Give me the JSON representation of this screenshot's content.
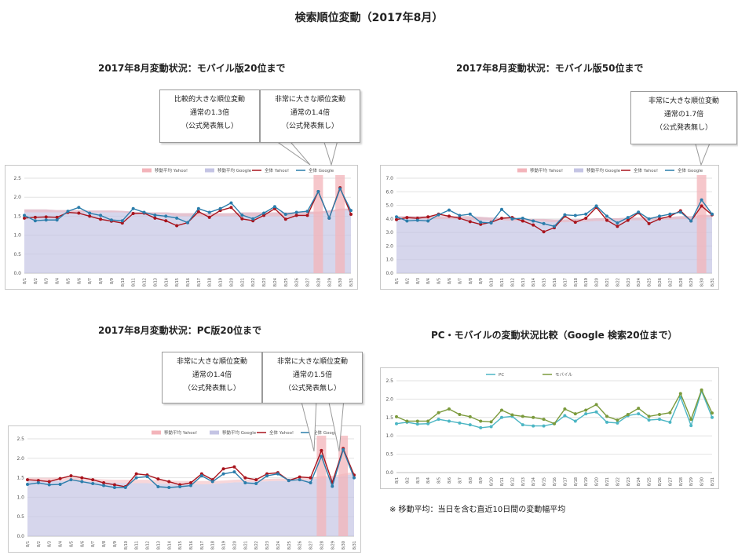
{
  "page": {
    "title": "検索順位変動（2017年8月）"
  },
  "footnote": "※ 移動平均：当日を含む直近10日間の変動幅平均",
  "colors": {
    "yahoo": "#a8141d",
    "google": "#2b7dab",
    "band": "#c4c4e4",
    "highlight": "#f3b4ba",
    "pc": "#4cb6c4",
    "mobile": "#7b9a3c"
  },
  "sections": [
    {
      "title": "2017年8月変動状況：モバイル版20位まで",
      "callouts": [
        {
          "lines": [
            "比較的大きな順位変動",
            "通常の1.3倍",
            "（公式発表無し）"
          ]
        },
        {
          "lines": [
            "非常に大きな順位変動",
            "通常の1.4倍",
            "（公式発表無し）"
          ]
        }
      ]
    },
    {
      "title": "2017年8月変動状況：モバイル版50位まで",
      "callouts": [
        {
          "lines": [
            "非常に大きな順位変動",
            "通常の1.7倍",
            "（公式発表無し）"
          ]
        }
      ]
    },
    {
      "title": "2017年8月変動状況：PC版20位まで",
      "callouts": [
        {
          "lines": [
            "非常に大きな順位変動",
            "通常の1.4倍",
            "（公式発表無し）"
          ]
        },
        {
          "lines": [
            "非常に大きな順位変動",
            "通常の1.5倍",
            "（公式発表無し）"
          ]
        }
      ]
    },
    {
      "title": "PC・モバイルの変動状況比較（Google 検索20位まで）",
      "callouts": []
    }
  ],
  "chart_data": [
    {
      "type": "line",
      "categories": [
        "8/1",
        "8/2",
        "8/3",
        "8/4",
        "8/5",
        "8/6",
        "8/7",
        "8/8",
        "8/9",
        "8/10",
        "8/11",
        "8/12",
        "8/13",
        "8/14",
        "8/15",
        "8/16",
        "8/17",
        "8/18",
        "8/19",
        "8/20",
        "8/21",
        "8/22",
        "8/23",
        "8/24",
        "8/25",
        "8/26",
        "8/27",
        "8/28",
        "8/29",
        "8/30",
        "8/31"
      ],
      "ylim": [
        0,
        2.5
      ],
      "yticks": [
        "0.0",
        "0.5",
        "1.0",
        "1.5",
        "2.0",
        "2.5"
      ],
      "legend": [
        "移動平均 Yahoo!",
        "移動平均 Google",
        "全体 Yahoo!",
        "全体 Google"
      ],
      "highlight_days": [
        "8/28",
        "8/30"
      ],
      "band_yahoo": [
        1.6,
        1.6,
        1.6,
        1.6,
        1.6,
        1.6,
        1.6,
        1.6,
        1.6,
        1.6,
        1.55,
        1.55,
        1.55,
        1.55,
        1.5,
        1.5,
        1.5,
        1.5,
        1.5,
        1.5,
        1.5,
        1.5,
        1.5,
        1.5,
        1.5,
        1.5,
        1.55,
        1.55,
        1.6,
        1.65,
        1.65
      ],
      "band_google": [
        1.68,
        1.68,
        1.68,
        1.66,
        1.66,
        1.66,
        1.65,
        1.65,
        1.65,
        1.64,
        1.62,
        1.6,
        1.6,
        1.6,
        1.58,
        1.58,
        1.58,
        1.58,
        1.58,
        1.58,
        1.6,
        1.6,
        1.6,
        1.6,
        1.6,
        1.6,
        1.62,
        1.62,
        1.65,
        1.7,
        1.7
      ],
      "series": [
        {
          "name": "全体 Yahoo!",
          "values": [
            1.45,
            1.47,
            1.48,
            1.47,
            1.6,
            1.58,
            1.5,
            1.42,
            1.37,
            1.32,
            1.57,
            1.58,
            1.45,
            1.38,
            1.25,
            1.33,
            1.62,
            1.47,
            1.65,
            1.73,
            1.43,
            1.38,
            1.52,
            1.7,
            1.42,
            1.52,
            1.52,
            2.15,
            1.45,
            2.25,
            1.55
          ]
        },
        {
          "name": "全体 Google",
          "values": [
            1.52,
            1.38,
            1.4,
            1.4,
            1.63,
            1.73,
            1.58,
            1.52,
            1.4,
            1.38,
            1.7,
            1.6,
            1.53,
            1.5,
            1.45,
            1.33,
            1.7,
            1.6,
            1.7,
            1.85,
            1.53,
            1.43,
            1.58,
            1.75,
            1.55,
            1.6,
            1.63,
            2.15,
            1.45,
            2.22,
            1.65
          ]
        }
      ]
    },
    {
      "type": "line",
      "categories": [
        "8/1",
        "8/2",
        "8/3",
        "8/4",
        "8/5",
        "8/6",
        "8/7",
        "8/8",
        "8/9",
        "8/10",
        "8/11",
        "8/12",
        "8/13",
        "8/14",
        "8/15",
        "8/16",
        "8/17",
        "8/18",
        "8/19",
        "8/20",
        "8/21",
        "8/22",
        "8/23",
        "8/24",
        "8/25",
        "8/26",
        "8/27",
        "8/28",
        "8/29",
        "8/30",
        "8/31"
      ],
      "ylim": [
        0,
        7
      ],
      "yticks": [
        "0.0",
        "1.0",
        "2.0",
        "3.0",
        "4.0",
        "5.0",
        "6.0",
        "7.0"
      ],
      "legend": [
        "移動平均 Yahoo!",
        "移動平均 Google",
        "全体 Yahoo!",
        "全体 Google"
      ],
      "highlight_days": [
        "8/30"
      ],
      "band_yahoo": [
        4.0,
        4.0,
        4.0,
        4.0,
        4.0,
        4.0,
        4.0,
        3.95,
        3.9,
        3.9,
        3.9,
        3.85,
        3.85,
        3.8,
        3.8,
        3.75,
        3.75,
        3.8,
        3.8,
        3.85,
        3.85,
        3.85,
        3.9,
        3.9,
        3.9,
        3.95,
        3.95,
        4.0,
        4.0,
        4.1,
        4.1
      ],
      "band_google": [
        4.2,
        4.2,
        4.2,
        4.2,
        4.2,
        4.2,
        4.2,
        4.2,
        4.15,
        4.1,
        4.1,
        4.05,
        4.0,
        4.0,
        4.0,
        3.95,
        3.95,
        4.0,
        4.0,
        4.05,
        4.05,
        4.05,
        4.1,
        4.1,
        4.1,
        4.15,
        4.15,
        4.2,
        4.2,
        4.3,
        4.3
      ],
      "series": [
        {
          "name": "全体 Yahoo!",
          "values": [
            3.95,
            4.1,
            4.05,
            4.15,
            4.35,
            4.2,
            4.05,
            3.8,
            3.6,
            3.75,
            4.05,
            4.1,
            3.85,
            3.55,
            3.05,
            3.35,
            4.2,
            3.75,
            4.05,
            4.85,
            3.9,
            3.45,
            3.9,
            4.45,
            3.65,
            4.0,
            4.2,
            4.6,
            3.85,
            4.95,
            4.3
          ]
        },
        {
          "name": "全体 Google",
          "values": [
            4.15,
            3.85,
            3.9,
            3.85,
            4.3,
            4.65,
            4.25,
            4.35,
            3.75,
            3.7,
            4.7,
            4.0,
            4.05,
            3.85,
            3.65,
            3.45,
            4.3,
            4.25,
            4.35,
            4.95,
            4.2,
            3.7,
            4.1,
            4.5,
            4.0,
            4.2,
            4.35,
            4.5,
            3.85,
            5.4,
            4.35
          ]
        }
      ]
    },
    {
      "type": "line",
      "categories": [
        "8/1",
        "8/2",
        "8/3",
        "8/4",
        "8/5",
        "8/6",
        "8/7",
        "8/8",
        "8/9",
        "8/10",
        "8/11",
        "8/12",
        "8/13",
        "8/14",
        "8/15",
        "8/16",
        "8/17",
        "8/18",
        "8/19",
        "8/20",
        "8/21",
        "8/22",
        "8/23",
        "8/24",
        "8/25",
        "8/26",
        "8/27",
        "8/28",
        "8/29",
        "8/30",
        "8/31"
      ],
      "ylim": [
        0,
        2.5
      ],
      "yticks": [
        "0.0",
        "0.5",
        "1.0",
        "1.5",
        "2.0",
        "2.5"
      ],
      "legend": [
        "移動平均 Yahoo!",
        "移動平均 Google",
        "全体 Yahoo!",
        "全体 Google"
      ],
      "highlight_days": [
        "8/28",
        "8/30"
      ],
      "band_yahoo": [
        1.5,
        1.5,
        1.5,
        1.5,
        1.5,
        1.5,
        1.48,
        1.46,
        1.45,
        1.45,
        1.45,
        1.45,
        1.44,
        1.43,
        1.42,
        1.42,
        1.42,
        1.42,
        1.43,
        1.45,
        1.46,
        1.46,
        1.47,
        1.48,
        1.48,
        1.5,
        1.5,
        1.55,
        1.55,
        1.6,
        1.65
      ],
      "band_google": [
        1.42,
        1.42,
        1.42,
        1.42,
        1.42,
        1.42,
        1.4,
        1.38,
        1.37,
        1.36,
        1.36,
        1.36,
        1.35,
        1.34,
        1.33,
        1.33,
        1.33,
        1.34,
        1.36,
        1.38,
        1.39,
        1.4,
        1.41,
        1.42,
        1.42,
        1.43,
        1.45,
        1.5,
        1.5,
        1.55,
        1.6
      ],
      "series": [
        {
          "name": "全体 Yahoo!",
          "values": [
            1.45,
            1.43,
            1.4,
            1.48,
            1.55,
            1.5,
            1.45,
            1.37,
            1.32,
            1.27,
            1.6,
            1.57,
            1.47,
            1.4,
            1.32,
            1.37,
            1.6,
            1.45,
            1.73,
            1.78,
            1.5,
            1.45,
            1.6,
            1.63,
            1.43,
            1.52,
            1.5,
            2.2,
            1.38,
            2.25,
            1.57
          ]
        },
        {
          "name": "全体 Google",
          "values": [
            1.33,
            1.37,
            1.32,
            1.33,
            1.45,
            1.4,
            1.35,
            1.3,
            1.25,
            1.25,
            1.5,
            1.53,
            1.27,
            1.25,
            1.27,
            1.3,
            1.55,
            1.4,
            1.6,
            1.65,
            1.37,
            1.35,
            1.55,
            1.6,
            1.43,
            1.45,
            1.37,
            2.05,
            1.28,
            2.22,
            1.5
          ]
        }
      ]
    },
    {
      "type": "line",
      "categories": [
        "8/1",
        "8/2",
        "8/3",
        "8/4",
        "8/5",
        "8/6",
        "8/7",
        "8/8",
        "8/9",
        "8/10",
        "8/11",
        "8/12",
        "8/13",
        "8/14",
        "8/15",
        "8/16",
        "8/17",
        "8/18",
        "8/19",
        "8/20",
        "8/21",
        "8/22",
        "8/23",
        "8/24",
        "8/25",
        "8/26",
        "8/27",
        "8/28",
        "8/29",
        "8/30",
        "8/31"
      ],
      "ylim": [
        0,
        2.5
      ],
      "yticks": [
        "0.0",
        "0.5",
        "1.0",
        "1.5",
        "2.0",
        "2.5"
      ],
      "legend": [
        "PC",
        "モバイル"
      ],
      "series": [
        {
          "name": "PC",
          "values": [
            1.33,
            1.37,
            1.32,
            1.33,
            1.45,
            1.4,
            1.35,
            1.3,
            1.22,
            1.25,
            1.5,
            1.53,
            1.3,
            1.27,
            1.27,
            1.33,
            1.55,
            1.4,
            1.6,
            1.65,
            1.37,
            1.35,
            1.55,
            1.6,
            1.43,
            1.45,
            1.37,
            2.05,
            1.28,
            2.22,
            1.5
          ]
        },
        {
          "name": "モバイル",
          "values": [
            1.52,
            1.4,
            1.4,
            1.4,
            1.63,
            1.73,
            1.58,
            1.52,
            1.4,
            1.38,
            1.7,
            1.57,
            1.53,
            1.5,
            1.45,
            1.33,
            1.73,
            1.6,
            1.7,
            1.85,
            1.53,
            1.43,
            1.58,
            1.75,
            1.53,
            1.58,
            1.63,
            2.15,
            1.45,
            2.25,
            1.62
          ]
        }
      ]
    }
  ]
}
